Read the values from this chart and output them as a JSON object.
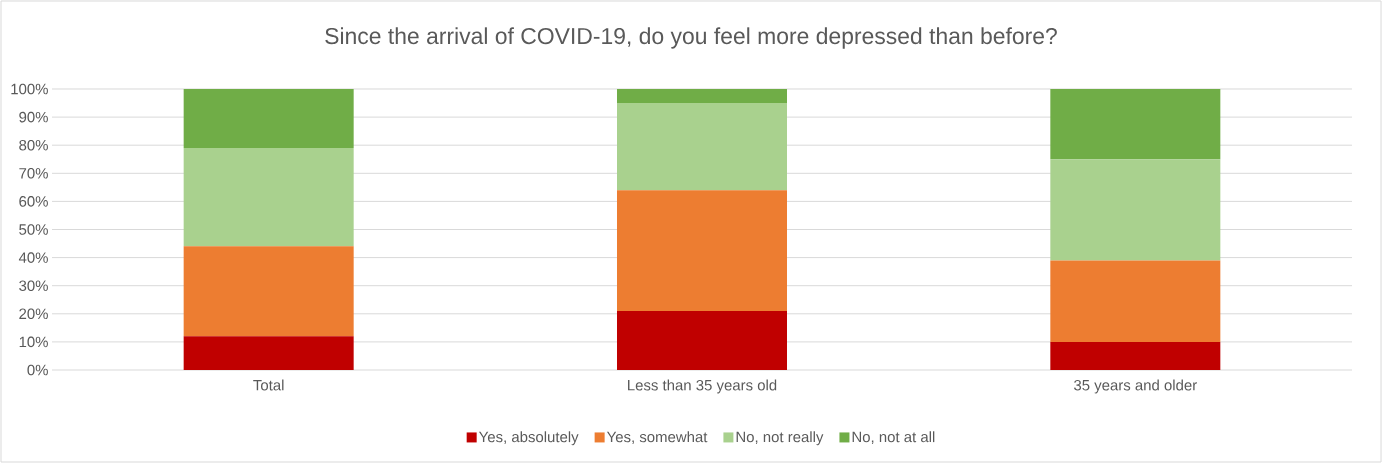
{
  "chart_data": {
    "type": "bar",
    "stacked": true,
    "title": "Since the arrival of COVID-19, do you feel more depressed than before?",
    "categories": [
      "Total",
      "Less than 35 years old",
      "35 years and older"
    ],
    "series": [
      {
        "name": "Yes, absolutely",
        "color": "#c00000",
        "values": [
          12,
          21,
          10
        ]
      },
      {
        "name": "Yes, somewhat",
        "color": "#ed7d31",
        "values": [
          32,
          43,
          29
        ]
      },
      {
        "name": "No, not really",
        "color": "#a9d18e",
        "values": [
          35,
          31,
          36
        ]
      },
      {
        "name": "No, not at all",
        "color": "#70ad47",
        "values": [
          21,
          5,
          25
        ]
      }
    ],
    "ylim": [
      0,
      100
    ],
    "yticks": [
      {
        "value": 0,
        "label": "0%"
      },
      {
        "value": 10,
        "label": "10%"
      },
      {
        "value": 20,
        "label": "20%"
      },
      {
        "value": 30,
        "label": "30%"
      },
      {
        "value": 40,
        "label": "40%"
      },
      {
        "value": 50,
        "label": "50%"
      },
      {
        "value": 60,
        "label": "60%"
      },
      {
        "value": 70,
        "label": "70%"
      },
      {
        "value": 80,
        "label": "80%"
      },
      {
        "value": 90,
        "label": "90%"
      },
      {
        "value": 100,
        "label": "100%"
      }
    ],
    "grid": "y",
    "legend": "bottom"
  }
}
